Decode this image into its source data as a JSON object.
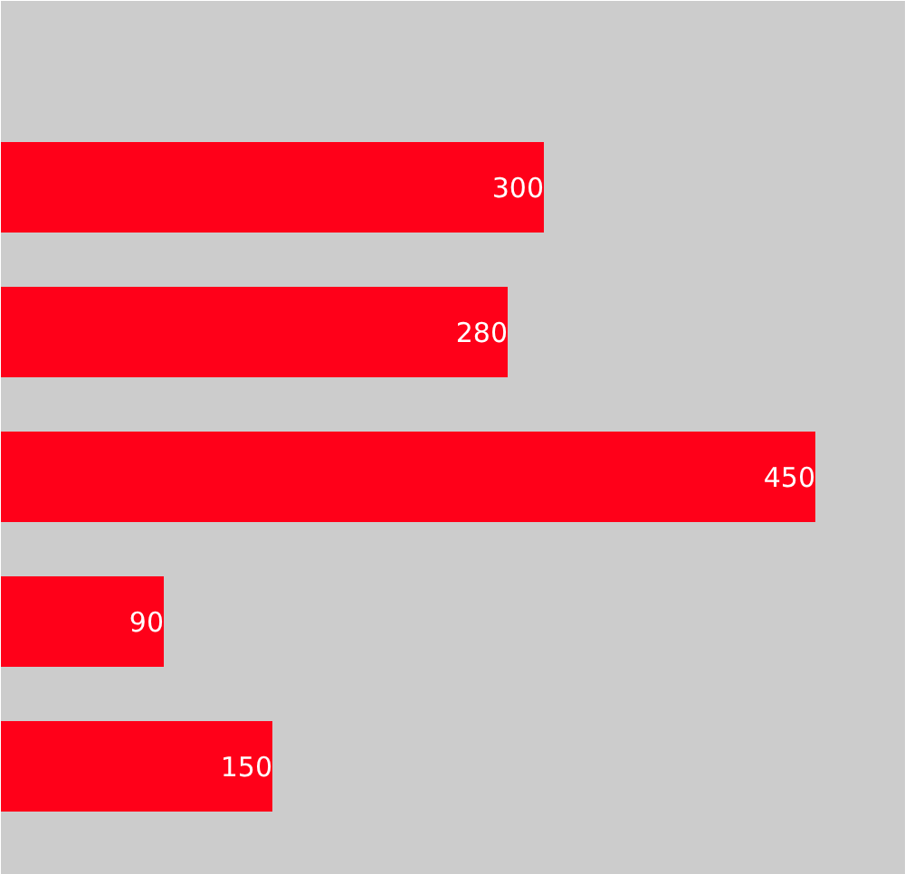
{
  "chart_data": {
    "type": "bar",
    "orientation": "horizontal",
    "categories": [
      null,
      null,
      null,
      null,
      null
    ],
    "values": [
      300,
      280,
      450,
      90,
      150
    ],
    "color": "#ff0019",
    "xlim": [
      0,
      500
    ],
    "tick_labels": false,
    "data_labels": true,
    "grid": false
  }
}
